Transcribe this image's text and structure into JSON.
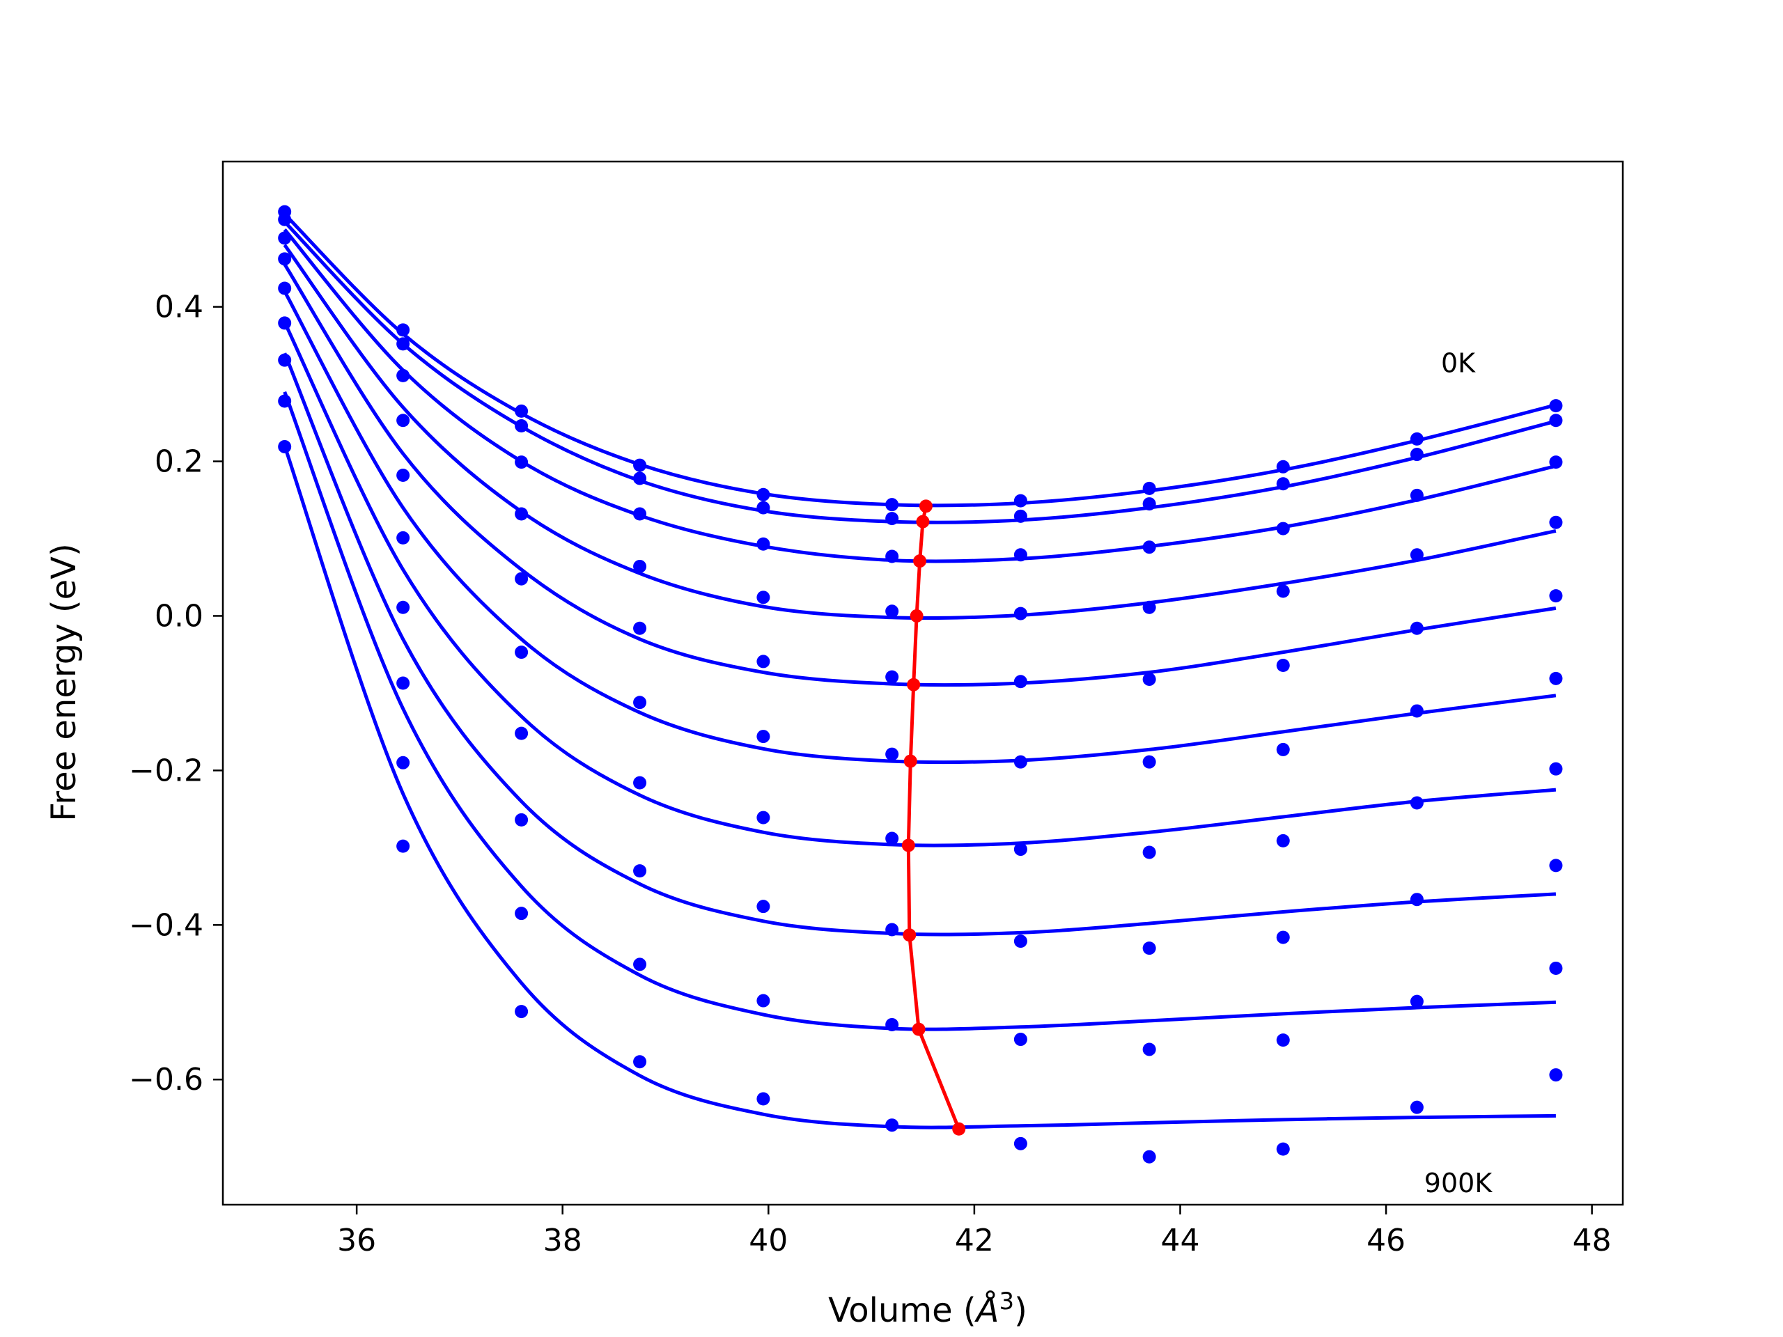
{
  "chart_data": {
    "type": "line",
    "xlabel": "Volume (",
    "xlabel_unit": "Å",
    "xlabel_exp": "3",
    "xlabel_close": ")",
    "ylabel": "Free energy (eV)",
    "xlim": [
      34.7,
      48.3
    ],
    "ylim": [
      -0.762,
      0.588
    ],
    "xticks": [
      36,
      38,
      40,
      42,
      44,
      46,
      48
    ],
    "xtick_labels": [
      "36",
      "38",
      "40",
      "42",
      "44",
      "46",
      "48"
    ],
    "yticks": [
      -0.6,
      -0.4,
      -0.2,
      0.0,
      0.2,
      0.4
    ],
    "ytick_labels": [
      "−0.6",
      "−0.4",
      "−0.2",
      "0.0",
      "0.2",
      "0.4"
    ],
    "annotations": [
      {
        "text": "0K",
        "x": 46.7,
        "y": 0.328
      },
      {
        "text": "900K",
        "x": 46.7,
        "y": -0.733
      }
    ],
    "colors": {
      "curves": "#0000ff",
      "minimum_path": "#ff0000"
    },
    "x": [
      35.3,
      36.45,
      37.6,
      38.75,
      39.95,
      41.2,
      42.45,
      43.7,
      45.0,
      46.3,
      47.65
    ],
    "series": [
      {
        "values": [
          0.523,
          0.37,
          0.265,
          0.195,
          0.157,
          0.144,
          0.149,
          0.165,
          0.193,
          0.229,
          0.272
        ],
        "fit": [
          [
            35.3,
            0.52
          ],
          [
            36.45,
            0.365
          ],
          [
            37.6,
            0.262
          ],
          [
            38.75,
            0.196
          ],
          [
            39.95,
            0.158
          ],
          [
            41.2,
            0.144
          ],
          [
            42.45,
            0.146
          ],
          [
            43.7,
            0.162
          ],
          [
            45.0,
            0.189
          ],
          [
            46.3,
            0.227
          ],
          [
            47.65,
            0.273
          ]
        ]
      },
      {
        "values": [
          0.513,
          0.352,
          0.246,
          0.178,
          0.14,
          0.126,
          0.129,
          0.145,
          0.171,
          0.209,
          0.253
        ],
        "fit": [
          [
            35.3,
            0.51
          ],
          [
            36.45,
            0.352
          ],
          [
            37.6,
            0.245
          ],
          [
            38.75,
            0.175
          ],
          [
            39.95,
            0.136
          ],
          [
            41.2,
            0.122
          ],
          [
            42.45,
            0.124
          ],
          [
            43.7,
            0.14
          ],
          [
            45.0,
            0.167
          ],
          [
            46.3,
            0.205
          ],
          [
            47.65,
            0.252
          ]
        ]
      },
      {
        "values": [
          0.489,
          0.311,
          0.199,
          0.132,
          0.093,
          0.077,
          0.079,
          0.089,
          0.113,
          0.156,
          0.199
        ],
        "fit": [
          [
            35.3,
            0.5
          ],
          [
            36.45,
            0.318
          ],
          [
            37.6,
            0.2
          ],
          [
            38.75,
            0.13
          ],
          [
            39.95,
            0.09
          ],
          [
            41.2,
            0.072
          ],
          [
            42.45,
            0.074
          ],
          [
            43.7,
            0.09
          ],
          [
            45.0,
            0.115
          ],
          [
            46.3,
            0.15
          ],
          [
            47.65,
            0.194
          ]
        ]
      },
      {
        "values": [
          0.462,
          0.253,
          0.132,
          0.064,
          0.024,
          0.006,
          0.003,
          0.011,
          0.032,
          0.079,
          0.121
        ],
        "fit": [
          [
            35.3,
            0.48
          ],
          [
            36.45,
            0.27
          ],
          [
            37.6,
            0.135
          ],
          [
            38.75,
            0.055
          ],
          [
            39.95,
            0.012
          ],
          [
            41.2,
            -0.002
          ],
          [
            42.45,
            0.001
          ],
          [
            43.7,
            0.017
          ],
          [
            45.0,
            0.042
          ],
          [
            46.3,
            0.072
          ],
          [
            47.65,
            0.11
          ]
        ]
      },
      {
        "values": [
          0.424,
          0.182,
          0.048,
          -0.016,
          -0.059,
          -0.079,
          -0.085,
          -0.082,
          -0.064,
          -0.016,
          0.026
        ],
        "fit": [
          [
            35.3,
            0.455
          ],
          [
            36.45,
            0.21
          ],
          [
            37.6,
            0.06
          ],
          [
            38.75,
            -0.03
          ],
          [
            39.95,
            -0.073
          ],
          [
            41.2,
            -0.088
          ],
          [
            42.45,
            -0.087
          ],
          [
            43.7,
            -0.073
          ],
          [
            45.0,
            -0.047
          ],
          [
            46.3,
            -0.018
          ],
          [
            47.65,
            0.01
          ]
        ]
      },
      {
        "values": [
          0.379,
          0.101,
          -0.047,
          -0.112,
          -0.156,
          -0.179,
          -0.189,
          -0.189,
          -0.173,
          -0.123,
          -0.081
        ],
        "fit": [
          [
            35.3,
            0.42
          ],
          [
            36.45,
            0.14
          ],
          [
            37.6,
            -0.03
          ],
          [
            38.75,
            -0.125
          ],
          [
            39.95,
            -0.172
          ],
          [
            41.2,
            -0.188
          ],
          [
            42.45,
            -0.187
          ],
          [
            43.7,
            -0.173
          ],
          [
            45.0,
            -0.15
          ],
          [
            46.3,
            -0.126
          ],
          [
            47.65,
            -0.103
          ]
        ]
      },
      {
        "values": [
          0.331,
          0.011,
          -0.152,
          -0.216,
          -0.261,
          -0.288,
          -0.302,
          -0.306,
          -0.291,
          -0.242,
          -0.198
        ],
        "fit": [
          [
            35.3,
            0.38
          ],
          [
            36.45,
            0.06
          ],
          [
            37.6,
            -0.13
          ],
          [
            38.75,
            -0.232
          ],
          [
            39.95,
            -0.28
          ],
          [
            41.2,
            -0.296
          ],
          [
            42.45,
            -0.294
          ],
          [
            43.7,
            -0.28
          ],
          [
            45.0,
            -0.26
          ],
          [
            46.3,
            -0.24
          ],
          [
            47.65,
            -0.225
          ]
        ]
      },
      {
        "values": [
          0.278,
          -0.087,
          -0.264,
          -0.33,
          -0.376,
          -0.406,
          -0.421,
          -0.43,
          -0.416,
          -0.367,
          -0.323
        ],
        "fit": [
          [
            35.3,
            0.34
          ],
          [
            36.45,
            -0.03
          ],
          [
            37.6,
            -0.24
          ],
          [
            38.75,
            -0.347
          ],
          [
            39.95,
            -0.395
          ],
          [
            41.2,
            -0.411
          ],
          [
            42.45,
            -0.41
          ],
          [
            43.7,
            -0.398
          ],
          [
            45.0,
            -0.383
          ],
          [
            46.3,
            -0.37
          ],
          [
            47.65,
            -0.36
          ]
        ]
      },
      {
        "values": [
          0.219,
          -0.19,
          -0.385,
          -0.451,
          -0.498,
          -0.529,
          -0.548,
          -0.561,
          -0.549,
          -0.499,
          -0.456
        ],
        "fit": [
          [
            35.3,
            0.29
          ],
          [
            36.45,
            -0.12
          ],
          [
            37.6,
            -0.35
          ],
          [
            38.75,
            -0.465
          ],
          [
            39.95,
            -0.516
          ],
          [
            41.2,
            -0.534
          ],
          [
            42.45,
            -0.532
          ],
          [
            43.7,
            -0.524
          ],
          [
            45.0,
            -0.515
          ],
          [
            46.3,
            -0.507
          ],
          [
            47.65,
            -0.5
          ]
        ]
      },
      {
        "values": [
          null,
          -0.298,
          -0.512,
          -0.577,
          -0.625,
          -0.659,
          -0.683,
          -0.7,
          -0.69,
          -0.636,
          -0.594
        ],
        "fit": [
          [
            35.3,
            0.22
          ],
          [
            36.45,
            -0.23
          ],
          [
            37.6,
            -0.475
          ],
          [
            38.75,
            -0.595
          ],
          [
            39.95,
            -0.645
          ],
          [
            41.2,
            -0.661
          ],
          [
            42.45,
            -0.66
          ],
          [
            43.7,
            -0.656
          ],
          [
            45.0,
            -0.652
          ],
          [
            46.3,
            -0.649
          ],
          [
            47.65,
            -0.647
          ]
        ]
      }
    ],
    "minimum_path": {
      "x": [
        41.53,
        41.5,
        41.47,
        41.44,
        41.41,
        41.38,
        41.36,
        41.37,
        41.46,
        41.85
      ],
      "y": [
        0.142,
        0.122,
        0.071,
        0.0,
        -0.089,
        -0.188,
        -0.297,
        -0.413,
        -0.535,
        -0.664
      ]
    }
  }
}
